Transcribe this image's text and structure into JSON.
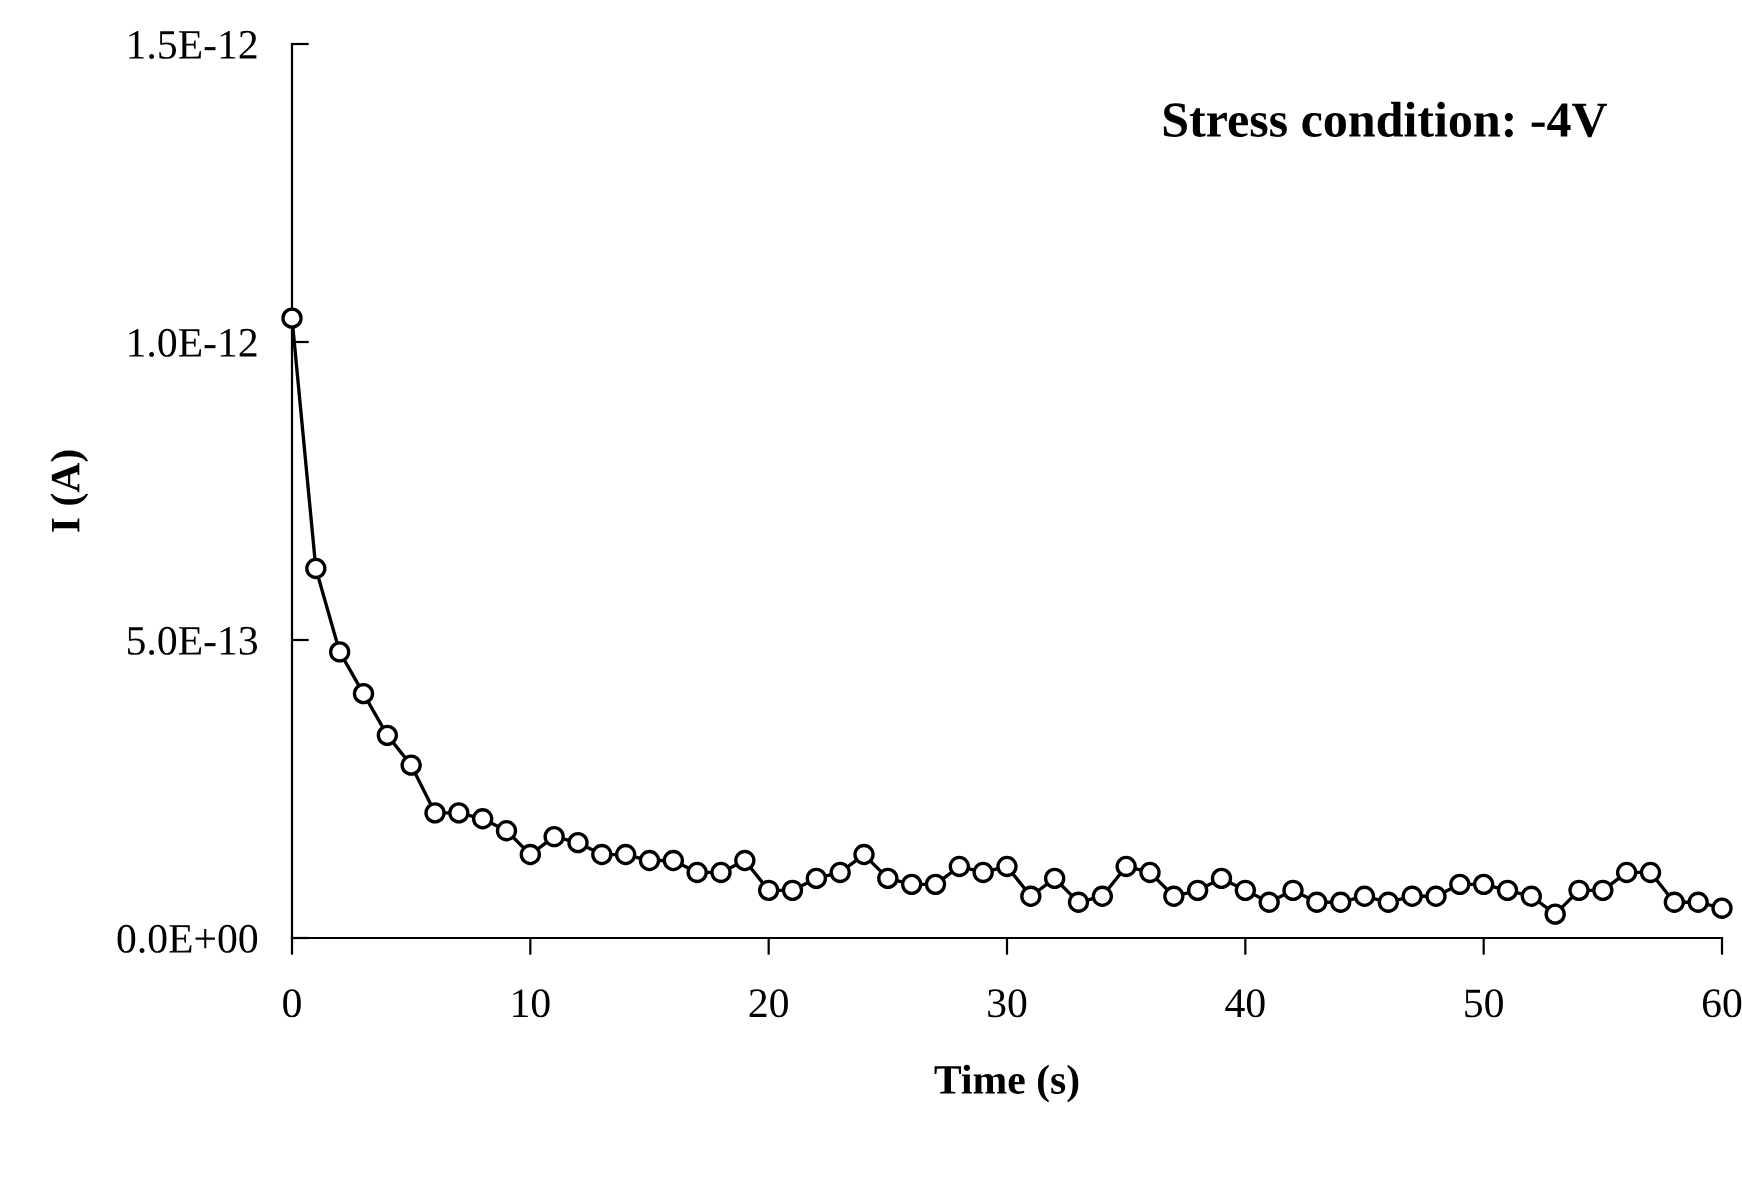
{
  "chart_data": {
    "type": "line",
    "xlabel": "Time (s)",
    "ylabel": "I (A)",
    "annotations": [
      "Stress condition: -4V"
    ],
    "x": [
      0,
      1,
      2,
      3,
      4,
      5,
      6,
      7,
      8,
      9,
      10,
      11,
      12,
      13,
      14,
      15,
      16,
      17,
      18,
      19,
      20,
      21,
      22,
      23,
      24,
      25,
      26,
      27,
      28,
      29,
      30,
      31,
      32,
      33,
      34,
      35,
      36,
      37,
      38,
      39,
      40,
      41,
      42,
      43,
      44,
      45,
      46,
      47,
      48,
      49,
      50,
      51,
      52,
      53,
      54,
      55,
      56,
      57,
      58,
      59,
      60
    ],
    "series": [
      {
        "color": "#000000",
        "values": [
          1.04e-12,
          6.2e-13,
          4.8e-13,
          4.1e-13,
          3.4e-13,
          2.9e-13,
          2.1e-13,
          2.1e-13,
          2e-13,
          1.8e-13,
          1.4e-13,
          1.7e-13,
          1.6e-13,
          1.4e-13,
          1.4e-13,
          1.3e-13,
          1.3e-13,
          1.1e-13,
          1.1e-13,
          1.3e-13,
          8e-14,
          8e-14,
          1e-13,
          1.1e-13,
          1.4e-13,
          1e-13,
          9e-14,
          9e-14,
          1.2e-13,
          1.1e-13,
          1.2e-13,
          7e-14,
          1e-13,
          6e-14,
          7e-14,
          1.2e-13,
          1.1e-13,
          7e-14,
          8e-14,
          1e-13,
          8e-14,
          6e-14,
          8e-14,
          6e-14,
          6e-14,
          7e-14,
          6e-14,
          7e-14,
          7e-14,
          9e-14,
          9e-14,
          8e-14,
          7e-14,
          4e-14,
          8e-14,
          8e-14,
          1.1e-13,
          1.1e-13,
          6e-14,
          6e-14,
          5e-14
        ]
      }
    ],
    "xlim": [
      0,
      60
    ],
    "xticks": [
      0,
      10,
      20,
      30,
      40,
      50,
      60
    ],
    "ylim": [
      0,
      1.5e-12
    ],
    "yticks": [
      {
        "value": 0,
        "label": "0.0E+00"
      },
      {
        "value": 5e-13,
        "label": "5.0E-13"
      },
      {
        "value": 1e-12,
        "label": "1.0E-12"
      },
      {
        "value": 1.5e-12,
        "label": "1.5E-12"
      }
    ],
    "marker": "circle",
    "line_style": "solid",
    "grid": false,
    "legend": false
  }
}
